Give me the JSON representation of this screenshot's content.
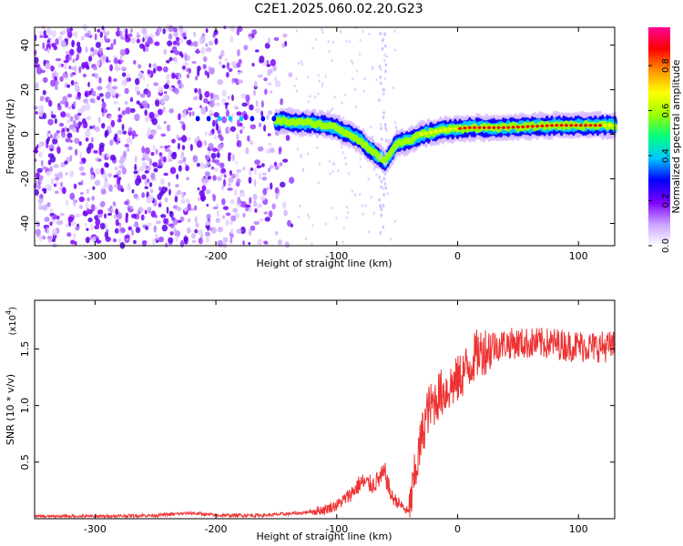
{
  "title": "C2E1.2025.060.02.20.G23",
  "chart_data": [
    {
      "type": "heatmap",
      "xlabel": "Height of straight line (km)",
      "ylabel": "Frequency (Hz)",
      "xlim": [
        -350,
        130
      ],
      "ylim": [
        -50,
        48
      ],
      "xticks": [
        -300,
        -200,
        -100,
        0,
        100
      ],
      "yticks": [
        -40,
        -20,
        0,
        20,
        40
      ],
      "colorbar": {
        "label": "Normalized spectral amplitude",
        "range": [
          0,
          0.97
        ],
        "ticks": [
          0.0,
          0.2,
          0.4,
          0.6,
          0.8
        ],
        "colors": [
          "#ffffff",
          "#c8a0ff",
          "#7d00ff",
          "#0000ff",
          "#00c8ff",
          "#00ff80",
          "#9bff00",
          "#ffff00",
          "#ff9600",
          "#ff0000",
          "#ff0096"
        ]
      },
      "ridge": [
        {
          "x": -215,
          "y": 7
        },
        {
          "x": -180,
          "y": 7
        },
        {
          "x": -150,
          "y": 6
        },
        {
          "x": -120,
          "y": 5
        },
        {
          "x": -100,
          "y": 3
        },
        {
          "x": -90,
          "y": 0
        },
        {
          "x": -80,
          "y": -3
        },
        {
          "x": -70,
          "y": -8
        },
        {
          "x": -60,
          "y": -12
        },
        {
          "x": -50,
          "y": -4
        },
        {
          "x": -40,
          "y": -3
        },
        {
          "x": -30,
          "y": 0
        },
        {
          "x": -10,
          "y": 2
        },
        {
          "x": 10,
          "y": 3
        },
        {
          "x": 40,
          "y": 3
        },
        {
          "x": 80,
          "y": 4
        },
        {
          "x": 130,
          "y": 4
        }
      ],
      "grid": false
    },
    {
      "type": "line",
      "xlabel": "Height of straight line (km)",
      "ylabel": "SNR (10 * v/v)",
      "yscale_label": "(x10",
      "yscale_exp": "4",
      "xlim": [
        -350,
        130
      ],
      "ylim": [
        0,
        1.93
      ],
      "xticks": [
        -300,
        -200,
        -100,
        0,
        100
      ],
      "yticks": [
        0.5,
        1.0,
        1.5
      ],
      "ytick_labels": [
        "0.5",
        "1.0",
        "1.5"
      ],
      "color": "#ee3333",
      "series": [
        {
          "x": [
            -350,
            -300,
            -250,
            -220,
            -200,
            -160,
            -130,
            -110,
            -100,
            -90,
            -80,
            -70,
            -60,
            -55,
            -50,
            -40,
            -35,
            -30,
            -25,
            -20,
            -15,
            -10,
            -5,
            0,
            5,
            10,
            15,
            20,
            25,
            30,
            40,
            50,
            60,
            70,
            80,
            90,
            100,
            110,
            120,
            130
          ],
          "values": [
            0.02,
            0.02,
            0.03,
            0.05,
            0.03,
            0.03,
            0.05,
            0.08,
            0.12,
            0.2,
            0.32,
            0.3,
            0.4,
            0.2,
            0.15,
            0.05,
            0.4,
            0.7,
            0.95,
            1.02,
            1.1,
            1.13,
            1.18,
            1.22,
            1.3,
            1.35,
            1.45,
            1.48,
            1.5,
            1.52,
            1.55,
            1.55,
            1.55,
            1.55,
            1.55,
            1.53,
            1.53,
            1.52,
            1.52,
            1.52
          ]
        }
      ],
      "grid": false
    }
  ]
}
